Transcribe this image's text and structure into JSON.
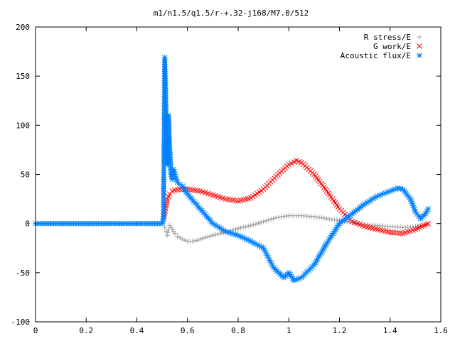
{
  "chart_data": {
    "type": "scatter",
    "title": "m1/n1.5/q1.5/r-+.32-j168/M7.0/512",
    "xlabel": "",
    "ylabel": "",
    "xlim": [
      0,
      1.6
    ],
    "ylim": [
      -100,
      200
    ],
    "xticks": [
      "0",
      "0.2",
      "0.4",
      "0.6",
      "0.8",
      "1",
      "1.2",
      "1.4",
      "1.6"
    ],
    "yticks": [
      "-100",
      "-50",
      "0",
      "50",
      "100",
      "150",
      "200"
    ],
    "grid": false,
    "legend_position": "top-right",
    "series": [
      {
        "name": "R stress/E",
        "marker": "plus",
        "color": "#a0a0a0",
        "x": [
          0.51,
          0.515,
          0.52,
          0.525,
          0.53,
          0.54,
          0.55,
          0.56,
          0.58,
          0.6,
          0.62,
          0.64,
          0.66,
          0.7,
          0.75,
          0.8,
          0.85,
          0.9,
          0.95,
          1.0,
          1.05,
          1.1,
          1.15,
          1.2,
          1.25,
          1.3,
          1.35,
          1.4,
          1.45,
          1.5,
          1.55
        ],
        "y": [
          -4,
          -8,
          -12,
          -6,
          -2,
          -6,
          -10,
          -13,
          -16,
          -18,
          -18,
          -17,
          -15,
          -12,
          -9,
          -5,
          -2,
          2,
          6,
          8,
          8,
          7,
          5,
          3,
          1,
          -1,
          -2,
          -3,
          -4,
          -3,
          -1
        ]
      },
      {
        "name": "G work/E",
        "marker": "cross",
        "color": "#ff0000",
        "x": [
          0.505,
          0.51,
          0.515,
          0.52,
          0.53,
          0.54,
          0.55,
          0.57,
          0.6,
          0.65,
          0.7,
          0.75,
          0.8,
          0.85,
          0.9,
          0.95,
          1.0,
          1.03,
          1.05,
          1.1,
          1.15,
          1.2,
          1.25,
          1.3,
          1.35,
          1.4,
          1.45,
          1.5,
          1.55
        ],
        "y": [
          5,
          10,
          18,
          25,
          30,
          33,
          34,
          35,
          35,
          33,
          29,
          25,
          23,
          26,
          35,
          48,
          60,
          64,
          62,
          50,
          33,
          15,
          2,
          -3,
          -6,
          -9,
          -10,
          -6,
          0
        ]
      },
      {
        "name": "Acoustic flux/E",
        "marker": "star",
        "color": "#0080ff",
        "x": [
          0,
          0.05,
          0.1,
          0.15,
          0.2,
          0.25,
          0.3,
          0.35,
          0.4,
          0.45,
          0.5,
          0.505,
          0.51,
          0.515,
          0.52,
          0.525,
          0.53,
          0.535,
          0.54,
          0.545,
          0.55,
          0.56,
          0.58,
          0.6,
          0.65,
          0.7,
          0.75,
          0.8,
          0.85,
          0.9,
          0.92,
          0.94,
          0.96,
          0.98,
          1.0,
          1.02,
          1.05,
          1.1,
          1.15,
          1.2,
          1.25,
          1.3,
          1.35,
          1.4,
          1.43,
          1.45,
          1.48,
          1.5,
          1.52,
          1.54,
          1.55
        ],
        "y": [
          0,
          0,
          0,
          0,
          0,
          0,
          0,
          0,
          0,
          0,
          0,
          5,
          169,
          116,
          60,
          110,
          75,
          50,
          45,
          55,
          50,
          42,
          38,
          30,
          15,
          0,
          -8,
          -12,
          -18,
          -25,
          -35,
          -45,
          -50,
          -55,
          -50,
          -58,
          -55,
          -42,
          -20,
          0,
          10,
          20,
          28,
          33,
          36,
          35,
          25,
          12,
          5,
          10,
          15
        ]
      }
    ]
  }
}
